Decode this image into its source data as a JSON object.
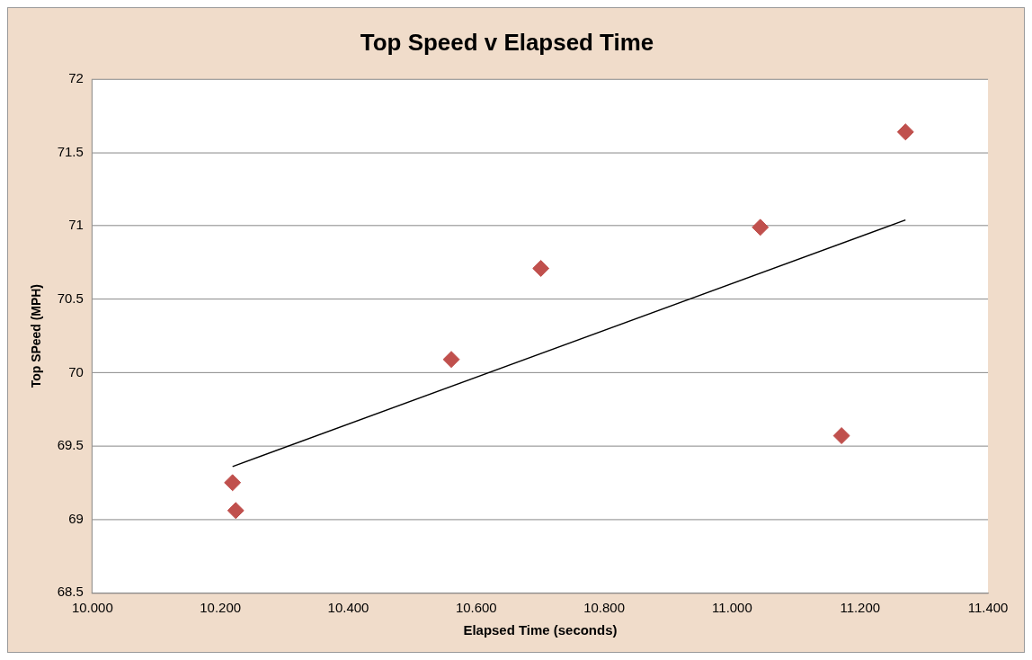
{
  "chart_data": {
    "type": "scatter",
    "title": "Top Speed v Elapsed Time",
    "xlabel": "Elapsed Time (seconds)",
    "ylabel": "Top SPeed (MPH)",
    "xlim": [
      10,
      11.4
    ],
    "xticks": [
      {
        "value": 10,
        "label": "10.000"
      },
      {
        "value": 10.2,
        "label": "10.200"
      },
      {
        "value": 10.4,
        "label": "10.400"
      },
      {
        "value": 10.6,
        "label": "10.600"
      },
      {
        "value": 10.8,
        "label": "10.800"
      },
      {
        "value": 11,
        "label": "11.000"
      },
      {
        "value": 11.2,
        "label": "11.200"
      },
      {
        "value": 11.4,
        "label": "11.400"
      }
    ],
    "ylim": [
      68.5,
      72
    ],
    "yticks": [
      68.5,
      69,
      69.5,
      70,
      70.5,
      71,
      71.5,
      72
    ],
    "grid": "y",
    "marker": "diamond",
    "series": [
      {
        "color": "#c0504d",
        "x": [
          10.219,
          10.224,
          10.561,
          10.701,
          11.044,
          11.171,
          11.271
        ],
        "values": [
          69.25,
          69.06,
          70.09,
          70.71,
          70.99,
          69.57,
          71.64
        ]
      },
      {
        "type": "line",
        "color": "#000000",
        "marker": "none",
        "x": [
          10.219,
          11.271
        ],
        "values": [
          69.36,
          71.04
        ]
      }
    ]
  }
}
